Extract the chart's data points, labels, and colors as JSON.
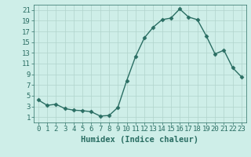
{
  "title": "",
  "xlabel": "Humidex (Indice chaleur)",
  "x": [
    0,
    1,
    2,
    3,
    4,
    5,
    6,
    7,
    8,
    9,
    10,
    11,
    12,
    13,
    14,
    15,
    16,
    17,
    18,
    19,
    20,
    21,
    22,
    23
  ],
  "y": [
    4.2,
    3.2,
    3.4,
    2.6,
    2.3,
    2.2,
    2.0,
    1.2,
    1.3,
    2.8,
    7.8,
    12.3,
    15.8,
    17.8,
    19.2,
    19.5,
    21.2,
    19.7,
    19.2,
    16.2,
    12.8,
    13.5,
    10.2,
    8.5
  ],
  "line_color": "#2a6e63",
  "bg_color": "#ceeee8",
  "grid_color": "#b0d4cc",
  "tick_color": "#2a6e63",
  "label_color": "#2a6e63",
  "ylim_min": 0,
  "ylim_max": 22,
  "yticks": [
    1,
    3,
    5,
    7,
    9,
    11,
    13,
    15,
    17,
    19,
    21
  ],
  "xticks": [
    0,
    1,
    2,
    3,
    4,
    5,
    6,
    7,
    8,
    9,
    10,
    11,
    12,
    13,
    14,
    15,
    16,
    17,
    18,
    19,
    20,
    21,
    22,
    23
  ],
  "marker": "D",
  "marker_size": 2.5,
  "line_width": 1.0,
  "font_size_label": 7.5,
  "font_size_tick": 6.5
}
